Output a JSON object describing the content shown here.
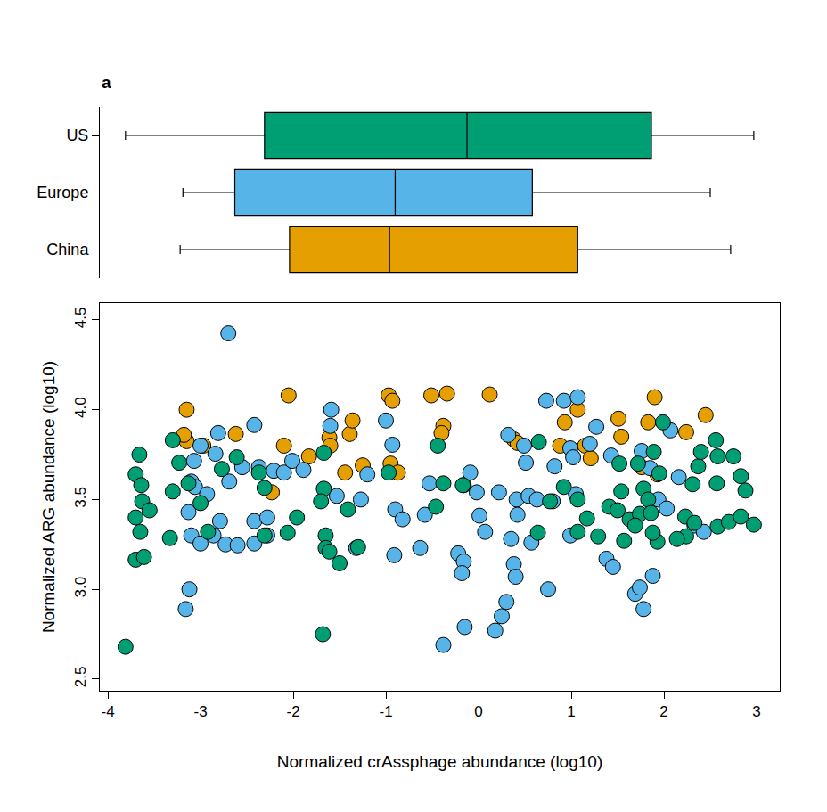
{
  "chart_data": [
    {
      "type": "box",
      "orientation": "horizontal",
      "title": "a",
      "categories": [
        "China",
        "Europe",
        "US"
      ],
      "colors": [
        "#E69F00",
        "#56B4E9",
        "#009E73"
      ],
      "lowerfence": [
        -3.22,
        -3.19,
        -3.81
      ],
      "q1": [
        -2.04,
        -2.63,
        -2.31
      ],
      "median": [
        -0.96,
        -0.9,
        -0.125
      ],
      "q3": [
        1.07,
        0.58,
        1.865
      ],
      "upperfence": [
        2.72,
        2.5,
        2.97
      ],
      "xlim": [
        -4.087,
        3.25
      ],
      "tick_labels": "y"
    },
    {
      "type": "scatter",
      "marker": "circle",
      "x_label": "Normalized crAssphage abundance (log10)",
      "y_label": "Normalized ARG abundance (log10)",
      "xlim": [
        -4.087,
        3.25
      ],
      "ylim": [
        2.435,
        4.594
      ],
      "xticks": [
        -4,
        -3,
        -2,
        -1,
        0,
        1,
        2,
        3
      ],
      "yticks": [
        2.5,
        {
          "value": 3,
          "label": "3.0"
        },
        3.5,
        {
          "value": 4,
          "label": "4.0"
        },
        4.5
      ],
      "grid": false,
      "series": [
        {
          "name": "China",
          "color": "#E69F00",
          "x": [
            -3.15,
            -3.18,
            -3.15,
            -2.62,
            -2.97,
            -2.05,
            -2.1,
            -1.83,
            -2.23,
            -1.61,
            -1.39,
            -1.36,
            -1.25,
            -1.44,
            -0.97,
            -0.93,
            -0.95,
            -0.87,
            -0.51,
            -0.34,
            -0.38,
            -0.4,
            0.12,
            -0.16,
            0.38,
            0.42,
            0.93,
            1.07,
            0.88,
            1.15,
            1.21,
            1.51,
            1.54,
            1.83,
            1.9,
            1.93,
            2.24,
            2.45,
            1.76,
            -1.6
          ],
          "y": [
            3.825,
            3.86,
            4.0,
            3.865,
            3.8,
            4.08,
            3.8,
            3.74,
            3.54,
            3.845,
            3.865,
            3.94,
            3.69,
            3.65,
            4.08,
            4.05,
            3.7,
            3.65,
            4.08,
            4.09,
            3.91,
            3.87,
            4.085,
            3.58,
            3.835,
            3.815,
            3.93,
            4.0,
            3.8,
            3.8,
            3.73,
            3.95,
            3.85,
            3.93,
            4.07,
            3.64,
            3.875,
            3.97,
            3.68,
            3.8
          ]
        },
        {
          "name": "Europe",
          "color": "#56B4E9",
          "x": [
            -2.7,
            -2.81,
            -2.42,
            -2.84,
            -3.0,
            -3.07,
            -3.1,
            -3.06,
            -3.13,
            -3.1,
            -3.12,
            -3.16,
            -3.0,
            -2.86,
            -2.73,
            -2.6,
            -2.42,
            -2.42,
            -2.28,
            -2.37,
            -2.21,
            -2.1,
            -2.01,
            -1.89,
            -1.59,
            -1.6,
            -1.53,
            -1.27,
            -1.2,
            -1.32,
            -1.0,
            -0.93,
            -0.9,
            -0.91,
            -0.82,
            -0.63,
            -0.58,
            -0.53,
            -0.38,
            -0.22,
            -0.16,
            -0.18,
            -0.15,
            -0.09,
            -0.02,
            0.01,
            0.07,
            0.18,
            0.22,
            0.25,
            0.3,
            0.32,
            0.35,
            0.38,
            0.4,
            0.41,
            0.42,
            0.49,
            0.51,
            0.54,
            0.57,
            0.63,
            0.73,
            0.75,
            0.8,
            0.82,
            0.92,
            0.99,
            1.02,
            1.07,
            1.05,
            0.99,
            1.2,
            1.27,
            1.38,
            1.45,
            1.43,
            1.69,
            1.74,
            1.78,
            1.88,
            1.76,
            1.85,
            1.94,
            2.03,
            2.07,
            2.16,
            2.33,
            2.43,
            -2.28,
            -2.93,
            -2.69,
            -2.55,
            -2.79
          ],
          "y": [
            4.425,
            3.87,
            3.915,
            3.755,
            3.8,
            3.715,
            3.6,
            3.57,
            3.43,
            3.3,
            3.0,
            2.89,
            3.255,
            3.3,
            3.25,
            3.245,
            3.255,
            3.38,
            3.4,
            3.68,
            3.66,
            3.65,
            3.715,
            3.665,
            4.0,
            3.91,
            3.52,
            3.5,
            3.64,
            3.23,
            3.94,
            3.805,
            3.445,
            3.19,
            3.39,
            3.23,
            3.415,
            3.59,
            2.69,
            3.2,
            3.155,
            3.09,
            2.79,
            3.65,
            3.54,
            3.41,
            3.32,
            2.77,
            3.54,
            2.85,
            2.93,
            3.86,
            3.28,
            3.14,
            3.07,
            3.5,
            3.415,
            3.8,
            3.705,
            3.52,
            3.26,
            3.5,
            4.05,
            3.0,
            3.49,
            3.685,
            4.05,
            3.785,
            3.735,
            4.07,
            3.53,
            3.3,
            3.81,
            3.905,
            3.17,
            3.125,
            3.745,
            2.975,
            3.01,
            2.89,
            3.075,
            3.77,
            3.675,
            3.5,
            3.45,
            3.885,
            3.625,
            3.355,
            3.32,
            3.3,
            3.53,
            3.6,
            3.68,
            3.38
          ]
        },
        {
          "name": "US",
          "color": "#009E73",
          "x": [
            -3.81,
            -3.7,
            -3.66,
            -3.64,
            -3.7,
            -3.65,
            -3.7,
            -3.61,
            -3.63,
            -3.55,
            -3.3,
            -3.3,
            -3.33,
            -3.23,
            -3.13,
            -3.0,
            -2.92,
            -2.77,
            -2.61,
            -2.37,
            -2.31,
            -2.06,
            -1.96,
            -1.67,
            -1.7,
            -1.68,
            -1.65,
            -1.65,
            -1.61,
            -1.5,
            -1.41,
            -1.3,
            -0.97,
            -0.46,
            -0.44,
            -0.38,
            -0.17,
            0.65,
            0.64,
            0.77,
            0.92,
            1.07,
            1.07,
            1.17,
            1.29,
            1.41,
            1.52,
            1.54,
            1.57,
            1.63,
            1.72,
            1.74,
            1.78,
            1.83,
            1.86,
            1.89,
            1.95,
            1.93,
            1.99,
            1.88,
            2.23,
            2.24,
            2.31,
            2.33,
            2.37,
            2.4,
            2.57,
            2.56,
            2.58,
            2.58,
            2.75,
            2.7,
            2.83,
            2.88,
            2.83,
            2.97,
            2.14,
            1.69,
            1.5,
            -1.67,
            -2.31
          ],
          "y": [
            2.68,
            3.64,
            3.75,
            3.58,
            3.4,
            3.32,
            3.165,
            3.18,
            3.49,
            3.44,
            3.83,
            3.545,
            3.285,
            3.705,
            3.59,
            3.48,
            3.32,
            3.67,
            3.735,
            3.65,
            3.565,
            3.315,
            3.4,
            3.56,
            3.49,
            2.75,
            3.3,
            3.23,
            3.21,
            3.145,
            3.445,
            3.235,
            3.65,
            3.46,
            3.8,
            3.59,
            3.58,
            3.82,
            3.315,
            3.49,
            3.57,
            3.5,
            3.32,
            3.395,
            3.295,
            3.46,
            3.7,
            3.545,
            3.27,
            3.39,
            3.7,
            3.42,
            3.56,
            3.5,
            3.425,
            3.765,
            3.645,
            3.265,
            3.93,
            3.315,
            3.405,
            3.295,
            3.585,
            3.37,
            3.685,
            3.765,
            3.59,
            3.83,
            3.74,
            3.35,
            3.74,
            3.375,
            3.63,
            3.55,
            3.405,
            3.36,
            3.28,
            3.355,
            3.44,
            3.76,
            3.3
          ]
        }
      ]
    }
  ]
}
